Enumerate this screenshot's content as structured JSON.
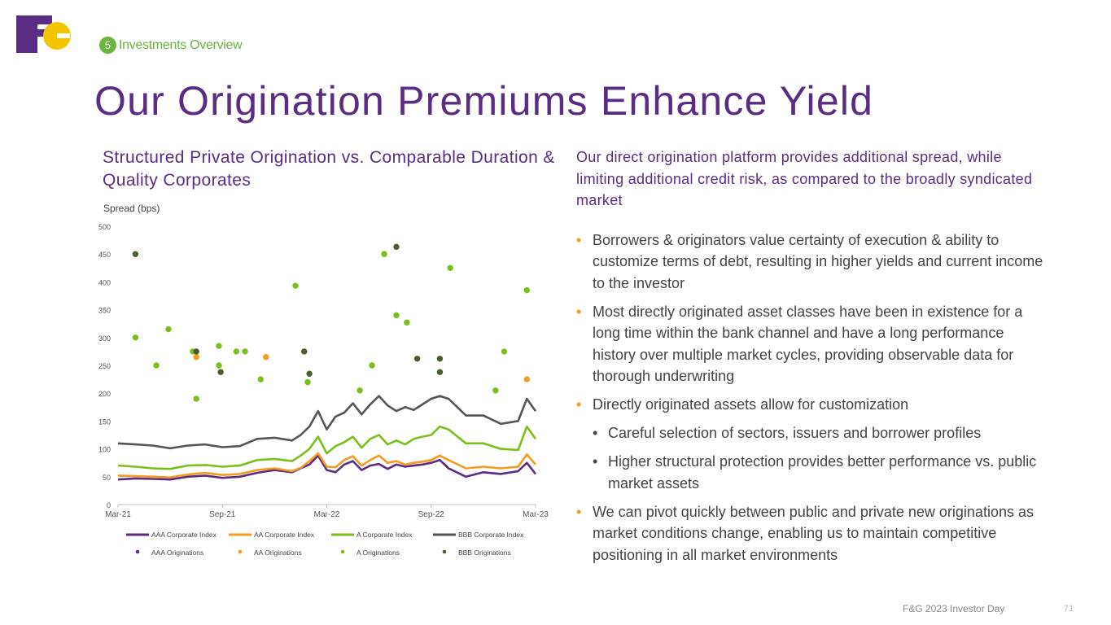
{
  "logo": {
    "text": "F&G",
    "colors": {
      "purple": "#5b2c83",
      "gold": "#f5c400"
    }
  },
  "section": {
    "number": "5",
    "label": "Investments Overview"
  },
  "title": "Our Origination Premiums Enhance Yield",
  "chart_title": "Structured Private Origination vs. Comparable Duration & Quality Corporates",
  "right": {
    "intro": "Our direct origination platform provides additional spread, while limiting additional credit risk, as compared to the broadly syndicated market",
    "bullets": [
      {
        "text": "Borrowers & originators value certainty of execution & ability to customize terms of debt, resulting in higher yields and current income to the investor"
      },
      {
        "text": "Most directly originated asset classes have been in existence for a long time within the bank channel and have a long performance history over multiple market cycles, providing observable data for thorough underwriting"
      },
      {
        "text": "Directly originated assets allow for customization"
      },
      {
        "text": "Careful selection of sectors, issuers and borrower profiles"
      },
      {
        "text": "Higher structural protection provides better performance vs. public market assets"
      },
      {
        "text": "We can pivot quickly between public and private new originations as market conditions change, enabling us to maintain competitive positioning in all market environments"
      }
    ]
  },
  "footer": {
    "text": "F&G 2023 Investor Day",
    "page": "71"
  },
  "chart_data": {
    "type": "line",
    "title": "Structured Private Origination vs. Comparable Duration & Quality Corporates",
    "ylabel": "Spread (bps)",
    "xlabel": "",
    "ylim": [
      0,
      500
    ],
    "yticks": [
      "0",
      "50",
      "100",
      "150",
      "200",
      "250",
      "300",
      "350",
      "400",
      "450",
      "500"
    ],
    "xlim": [
      0,
      24
    ],
    "xticks": [
      {
        "x": 0,
        "label": "Mar-21"
      },
      {
        "x": 6,
        "label": "Sep-21"
      },
      {
        "x": 12,
        "label": "Mar-22"
      },
      {
        "x": 18,
        "label": "Sep-22"
      },
      {
        "x": 24,
        "label": "Mar-23"
      }
    ],
    "grid": false,
    "legend": "bottom",
    "series": [
      {
        "name": "AAA Corporate Index",
        "kind": "line",
        "color": "#5b2c83",
        "x": [
          0,
          1,
          2,
          3,
          4,
          5,
          6,
          7,
          8,
          9,
          10,
          10.5,
          11,
          11.5,
          12,
          12.5,
          13,
          13.5,
          14,
          14.5,
          15,
          15.5,
          16,
          16.5,
          17,
          17.5,
          18,
          18.5,
          19,
          20,
          21,
          22,
          23,
          23.5,
          24
        ],
        "y": [
          45,
          47,
          46,
          45,
          50,
          52,
          48,
          50,
          57,
          62,
          58,
          65,
          72,
          88,
          62,
          58,
          72,
          78,
          62,
          70,
          73,
          64,
          72,
          68,
          70,
          72,
          75,
          80,
          65,
          50,
          58,
          55,
          60,
          75,
          55
        ]
      },
      {
        "name": "AA Corporate Index",
        "kind": "line",
        "color": "#f39c1e",
        "x": [
          0,
          1,
          2,
          3,
          4,
          5,
          6,
          7,
          8,
          9,
          10,
          10.5,
          11,
          11.5,
          12,
          12.5,
          13,
          13.5,
          14,
          14.5,
          15,
          15.5,
          16,
          16.5,
          17,
          17.5,
          18,
          18.5,
          19,
          20,
          21,
          22,
          23,
          23.5,
          24
        ],
        "y": [
          52,
          51,
          50,
          49,
          54,
          57,
          53,
          55,
          62,
          65,
          60,
          66,
          78,
          92,
          68,
          67,
          80,
          87,
          70,
          80,
          88,
          75,
          78,
          72,
          75,
          77,
          80,
          88,
          80,
          65,
          68,
          65,
          68,
          90,
          72
        ]
      },
      {
        "name": "A Corporate Index",
        "kind": "line",
        "color": "#7bbf1a",
        "x": [
          0,
          1,
          2,
          3,
          4,
          5,
          6,
          7,
          8,
          9,
          10,
          10.5,
          11,
          11.5,
          12,
          12.5,
          13,
          13.5,
          14,
          14.5,
          15,
          15.5,
          16,
          16.5,
          17,
          17.5,
          18,
          18.5,
          19,
          20,
          21,
          22,
          23,
          23.5,
          24
        ],
        "y": [
          70,
          68,
          65,
          64,
          70,
          71,
          68,
          70,
          80,
          82,
          78,
          88,
          100,
          122,
          92,
          105,
          112,
          122,
          102,
          118,
          125,
          108,
          115,
          108,
          118,
          122,
          125,
          140,
          135,
          110,
          110,
          100,
          98,
          140,
          118
        ]
      },
      {
        "name": "BBB Corporate Index",
        "kind": "line",
        "color": "#555555",
        "x": [
          0,
          1,
          2,
          3,
          4,
          5,
          6,
          7,
          8,
          9,
          10,
          10.5,
          11,
          11.5,
          12,
          12.5,
          13,
          13.5,
          14,
          14.5,
          15,
          15.5,
          16,
          16.5,
          17,
          17.5,
          18,
          18.5,
          19,
          20,
          21,
          22,
          23,
          23.5,
          24
        ],
        "y": [
          110,
          108,
          106,
          101,
          106,
          108,
          103,
          105,
          118,
          120,
          115,
          125,
          140,
          168,
          135,
          158,
          165,
          182,
          162,
          180,
          195,
          178,
          168,
          175,
          170,
          180,
          190,
          195,
          190,
          160,
          160,
          145,
          150,
          190,
          168
        ]
      },
      {
        "name": "AAA Originations",
        "kind": "scatter",
        "color": "#5b2c83",
        "x": [],
        "y": []
      },
      {
        "name": "AA Originations",
        "kind": "scatter",
        "color": "#f39c1e",
        "x": [
          4.5,
          8.5,
          23.5
        ],
        "y": [
          265,
          265,
          225
        ]
      },
      {
        "name": "A Originations",
        "kind": "scatter",
        "color": "#7bbf1a",
        "x": [
          1,
          2.2,
          2.9,
          4.3,
          4.5,
          5.8,
          5.8,
          6.8,
          7.3,
          8.2,
          10.2,
          10.9,
          13.9,
          14.6,
          15.3,
          16,
          16.6,
          19.1,
          21.7,
          22.2,
          23.5
        ],
        "y": [
          300,
          250,
          315,
          275,
          190,
          285,
          250,
          275,
          275,
          225,
          393,
          220,
          205,
          250,
          450,
          340,
          327,
          425,
          205,
          275,
          385
        ]
      },
      {
        "name": "BBB Originations",
        "kind": "scatter",
        "color": "#4a5e2a",
        "x": [
          1,
          4.5,
          5.9,
          10.7,
          11,
          16,
          17.2,
          18.5,
          18.5
        ],
        "y": [
          450,
          275,
          238,
          275,
          235,
          463,
          262,
          262,
          238
        ]
      }
    ]
  }
}
